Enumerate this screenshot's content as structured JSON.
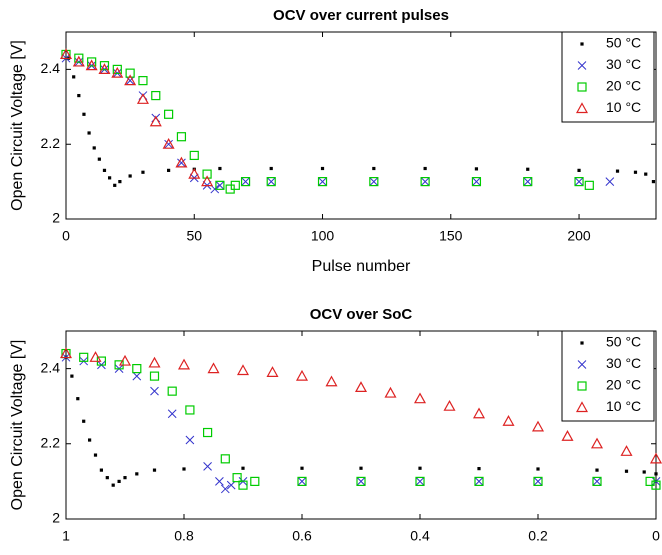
{
  "chart_data": [
    {
      "type": "scatter",
      "title": "OCV over current pulses",
      "xlabel": "Pulse number",
      "ylabel": "Open Circuit Voltage [V]",
      "xlim": [
        0,
        230
      ],
      "ylim": [
        2,
        2.5
      ],
      "xticks": [
        0,
        50,
        100,
        150,
        200
      ],
      "yticks": [
        2,
        2.2,
        2.4
      ],
      "legend": "upper right",
      "series": [
        {
          "name": "50 °C",
          "color": "#000000",
          "marker": "dot",
          "x": [
            1,
            3,
            5,
            7,
            9,
            11,
            13,
            15,
            17,
            19,
            21,
            25,
            30,
            40,
            50,
            60,
            80,
            100,
            120,
            140,
            160,
            180,
            200,
            215,
            222,
            226,
            229
          ],
          "y": [
            2.43,
            2.38,
            2.33,
            2.28,
            2.23,
            2.19,
            2.16,
            2.13,
            2.11,
            2.09,
            2.1,
            2.115,
            2.125,
            2.13,
            2.133,
            2.135,
            2.135,
            2.135,
            2.135,
            2.135,
            2.134,
            2.133,
            2.13,
            2.128,
            2.125,
            2.12,
            2.1
          ]
        },
        {
          "name": "30 °C",
          "color": "#3333cc",
          "marker": "x",
          "x": [
            0,
            5,
            10,
            15,
            20,
            25,
            30,
            35,
            40,
            45,
            50,
            55,
            58,
            60,
            70,
            80,
            100,
            120,
            140,
            160,
            180,
            200,
            212
          ],
          "y": [
            2.43,
            2.42,
            2.41,
            2.4,
            2.39,
            2.37,
            2.33,
            2.27,
            2.2,
            2.15,
            2.11,
            2.09,
            2.08,
            2.09,
            2.1,
            2.1,
            2.1,
            2.1,
            2.1,
            2.1,
            2.1,
            2.1,
            2.1
          ]
        },
        {
          "name": "20 °C",
          "color": "#00cc00",
          "marker": "square",
          "x": [
            0,
            5,
            10,
            15,
            20,
            25,
            30,
            35,
            40,
            45,
            50,
            55,
            60,
            64,
            66,
            70,
            80,
            100,
            120,
            140,
            160,
            180,
            200,
            204
          ],
          "y": [
            2.44,
            2.43,
            2.42,
            2.41,
            2.4,
            2.39,
            2.37,
            2.33,
            2.28,
            2.22,
            2.17,
            2.12,
            2.09,
            2.08,
            2.09,
            2.1,
            2.1,
            2.1,
            2.1,
            2.1,
            2.1,
            2.1,
            2.1,
            2.09
          ]
        },
        {
          "name": "10 °C",
          "color": "#dd2222",
          "marker": "triangle",
          "x": [
            0,
            5,
            10,
            15,
            20,
            25,
            30,
            35,
            40,
            45,
            50,
            55
          ],
          "y": [
            2.44,
            2.42,
            2.41,
            2.4,
            2.39,
            2.37,
            2.32,
            2.26,
            2.2,
            2.15,
            2.12,
            2.1
          ]
        }
      ]
    },
    {
      "type": "scatter",
      "title": "OCV over SoC",
      "xlabel": "SoC",
      "ylabel": "Open Circuit Voltage [V]",
      "xlim": [
        1,
        0
      ],
      "ylim": [
        2,
        2.5
      ],
      "xticks": [
        1,
        0.8,
        0.6,
        0.4,
        0.2,
        0
      ],
      "yticks": [
        2,
        2.2,
        2.4
      ],
      "legend": "upper right",
      "series": [
        {
          "name": "50 °C",
          "color": "#000000",
          "marker": "dot",
          "x": [
            1,
            0.99,
            0.98,
            0.97,
            0.96,
            0.95,
            0.94,
            0.93,
            0.92,
            0.91,
            0.9,
            0.88,
            0.85,
            0.8,
            0.7,
            0.6,
            0.5,
            0.4,
            0.3,
            0.2,
            0.1,
            0.05,
            0.02,
            0
          ],
          "y": [
            2.43,
            2.38,
            2.32,
            2.26,
            2.21,
            2.17,
            2.13,
            2.11,
            2.09,
            2.1,
            2.11,
            2.12,
            2.13,
            2.133,
            2.135,
            2.135,
            2.135,
            2.135,
            2.134,
            2.133,
            2.13,
            2.127,
            2.125,
            2.12
          ]
        },
        {
          "name": "30 °C",
          "color": "#3333cc",
          "marker": "x",
          "x": [
            1,
            0.97,
            0.94,
            0.91,
            0.88,
            0.85,
            0.82,
            0.79,
            0.76,
            0.74,
            0.73,
            0.72,
            0.7,
            0.6,
            0.5,
            0.4,
            0.3,
            0.2,
            0.1,
            0
          ],
          "y": [
            2.43,
            2.42,
            2.41,
            2.4,
            2.38,
            2.34,
            2.28,
            2.21,
            2.14,
            2.1,
            2.08,
            2.09,
            2.1,
            2.1,
            2.1,
            2.1,
            2.1,
            2.1,
            2.1,
            2.1
          ]
        },
        {
          "name": "20 °C",
          "color": "#00cc00",
          "marker": "square",
          "x": [
            1,
            0.97,
            0.94,
            0.91,
            0.88,
            0.85,
            0.82,
            0.79,
            0.76,
            0.73,
            0.71,
            0.7,
            0.68,
            0.6,
            0.5,
            0.4,
            0.3,
            0.2,
            0.1,
            0.01,
            0
          ],
          "y": [
            2.44,
            2.43,
            2.42,
            2.41,
            2.4,
            2.38,
            2.34,
            2.29,
            2.23,
            2.16,
            2.11,
            2.09,
            2.1,
            2.1,
            2.1,
            2.1,
            2.1,
            2.1,
            2.1,
            2.1,
            2.09
          ]
        },
        {
          "name": "10 °C",
          "color": "#dd2222",
          "marker": "triangle",
          "x": [
            1,
            0.95,
            0.9,
            0.85,
            0.8,
            0.75,
            0.7,
            0.65,
            0.6,
            0.55,
            0.5,
            0.45,
            0.4,
            0.35,
            0.3,
            0.25,
            0.2,
            0.15,
            0.1,
            0.05,
            0
          ],
          "y": [
            2.44,
            2.43,
            2.42,
            2.415,
            2.41,
            2.4,
            2.395,
            2.39,
            2.38,
            2.365,
            2.35,
            2.335,
            2.32,
            2.3,
            2.28,
            2.26,
            2.245,
            2.22,
            2.2,
            2.18,
            2.16
          ]
        }
      ]
    }
  ]
}
